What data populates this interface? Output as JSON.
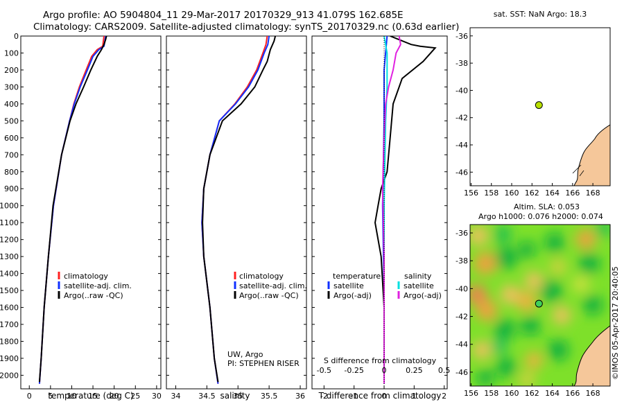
{
  "header": {
    "line1": "Argo profile: AO 5904804_11 29-Mar-2017 20170329_913 41.079S 162.685E",
    "line2": "Climatology: CARS2009. Satellite-adjusted climatology: synTS_20170329.nc (0.63d earlier)"
  },
  "colors": {
    "climatology": "#ff2020",
    "satellite": "#1030ff",
    "argo": "#000000",
    "sal_satellite": "#00e0e0",
    "sal_argo": "#e020e0",
    "marker": "#b8e000",
    "land": "#f5c79a"
  },
  "chart_data": [
    {
      "type": "line",
      "panel": "temperature",
      "xlabel": "temperature (deg C)",
      "xlim": [
        -2,
        31
      ],
      "ylim": [
        0,
        2080
      ],
      "y_inverted": true,
      "xticks": [
        0,
        5,
        10,
        15,
        20,
        25,
        30
      ],
      "yticks": [
        0,
        100,
        200,
        300,
        400,
        500,
        600,
        700,
        800,
        900,
        1000,
        1100,
        1200,
        1300,
        1400,
        1500,
        1600,
        1700,
        1800,
        1900,
        2000
      ],
      "legend": [
        "climatology",
        "satellite-adj. clim.",
        "Argo(..raw -QC)"
      ],
      "series": [
        {
          "name": "climatology",
          "x": [
            17.6,
            17.3,
            16.0,
            14.7,
            13.4,
            11.8,
            10.5,
            9.5,
            7.6,
            5.7,
            4.5,
            3.5,
            2.8,
            2.4
          ],
          "y": [
            0,
            60,
            80,
            120,
            200,
            300,
            400,
            500,
            700,
            1000,
            1300,
            1600,
            1900,
            2050
          ]
        },
        {
          "name": "satellite-adj. clim.",
          "x": [
            18.0,
            17.6,
            16.4,
            15.0,
            13.7,
            12.0,
            10.6,
            9.5,
            7.6,
            5.7,
            4.5,
            3.5,
            2.8,
            2.4
          ],
          "y": [
            0,
            60,
            80,
            120,
            200,
            300,
            400,
            500,
            700,
            1000,
            1300,
            1600,
            1900,
            2050
          ]
        },
        {
          "name": "Argo(..raw -QC)",
          "x": [
            18.2,
            18.0,
            17.6,
            17.0,
            16.0,
            14.5,
            12.8,
            11.0,
            9.6,
            7.6,
            5.6,
            4.5,
            3.5,
            2.8,
            2.4
          ],
          "y": [
            0,
            20,
            50,
            80,
            120,
            200,
            300,
            400,
            500,
            700,
            1000,
            1300,
            1600,
            1900,
            2040
          ]
        }
      ]
    },
    {
      "type": "line",
      "panel": "salinity",
      "xlabel": "salinity",
      "xlim": [
        33.85,
        36.1
      ],
      "ylim": [
        0,
        2080
      ],
      "y_inverted": true,
      "xticks": [
        34,
        34.5,
        35,
        35.5,
        36
      ],
      "legend": [
        "climatology",
        "satellite-adj. clim.",
        "Argo(..raw -QC)"
      ],
      "annotation": [
        "UW, Argo",
        "PI: STEPHEN RISER"
      ],
      "series": [
        {
          "name": "climatology",
          "x": [
            35.47,
            35.45,
            35.4,
            35.3,
            35.15,
            34.95,
            34.7,
            34.55,
            34.45,
            34.42,
            34.45,
            34.55,
            34.62,
            34.68
          ],
          "y": [
            0,
            50,
            100,
            200,
            300,
            400,
            500,
            700,
            900,
            1100,
            1300,
            1600,
            1900,
            2050
          ]
        },
        {
          "name": "satellite-adj. clim.",
          "x": [
            35.5,
            35.48,
            35.42,
            35.32,
            35.17,
            34.96,
            34.7,
            34.55,
            34.45,
            34.42,
            34.45,
            34.55,
            34.62,
            34.68
          ],
          "y": [
            0,
            50,
            100,
            200,
            300,
            400,
            500,
            700,
            900,
            1100,
            1300,
            1600,
            1900,
            2050
          ]
        },
        {
          "name": "Argo(..raw -QC)",
          "x": [
            35.6,
            35.58,
            35.52,
            35.47,
            35.4,
            35.27,
            35.05,
            34.75,
            34.55,
            34.45,
            34.43,
            34.45,
            34.55,
            34.62,
            34.68
          ],
          "y": [
            0,
            30,
            80,
            150,
            200,
            300,
            400,
            500,
            700,
            900,
            1100,
            1300,
            1600,
            1900,
            2040
          ]
        }
      ]
    },
    {
      "type": "line",
      "panel": "difference",
      "xlabel": "T difference from climatology",
      "xlabel_top": "S difference from climatology",
      "xlim": [
        -2.4,
        2.1
      ],
      "ylim": [
        0,
        2080
      ],
      "y_inverted": true,
      "xticks": [
        -2,
        -1,
        0,
        1,
        2
      ],
      "xticks_S": [
        "-0.5",
        "-0.25",
        "0",
        "0.25",
        "0.5"
      ],
      "legend_temperature_title": "temperature",
      "legend_salinity_title": "salinity",
      "legend": [
        "satellite",
        "Argo(-adj)",
        "satellite",
        "Argo(-adj)"
      ],
      "series": [
        {
          "name": "satellite",
          "x": [
            0.1,
            0.0,
            0.0,
            -0.05,
            0.0,
            0.0
          ],
          "y": [
            0,
            200,
            500,
            1000,
            1500,
            2050
          ]
        },
        {
          "name": "Argo(-adj)",
          "x": [
            0.2,
            0.9,
            1.2,
            1.7,
            1.3,
            0.6,
            0.5,
            0.3,
            0.2,
            0.1,
            -0.1,
            -0.2,
            -0.3,
            -0.1,
            0.0,
            0.0
          ],
          "y": [
            0,
            50,
            60,
            70,
            150,
            250,
            300,
            400,
            600,
            800,
            900,
            1000,
            1100,
            1300,
            1600,
            2050
          ]
        },
        {
          "name": "satellite",
          "x": [
            0.0,
            0.1,
            0.1,
            0.05,
            0.0,
            0.0,
            0.0
          ],
          "y": [
            0,
            100,
            300,
            500,
            1000,
            1500,
            2050
          ]
        },
        {
          "name": "Argo(-adj)",
          "x": [
            0.5,
            0.55,
            0.4,
            0.3,
            0.15,
            0.05,
            0.0,
            -0.05,
            0.0,
            0.0
          ],
          "y": [
            0,
            50,
            100,
            200,
            300,
            400,
            600,
            900,
            1300,
            2050
          ]
        }
      ]
    },
    {
      "type": "scatter",
      "panel": "sst-map",
      "title": "sat. SST: NaN Argo: 18.3",
      "xlim": [
        155.9,
        169.7
      ],
      "ylim": [
        -47,
        -35.4
      ],
      "xticks": [
        156,
        158,
        160,
        162,
        164,
        166,
        168
      ],
      "yticks": [
        -36,
        -38,
        -40,
        -42,
        -44,
        -46
      ],
      "points": [
        {
          "lon": 162.685,
          "lat": -41.079
        }
      ]
    },
    {
      "type": "heatmap",
      "panel": "sla-map",
      "title": "Altim. SLA: 0.053",
      "subtitle": "Argo h1000: 0.076 h2000: 0.074",
      "xlim": [
        155.9,
        169.7
      ],
      "ylim": [
        -47,
        -35.4
      ],
      "xticks": [
        156,
        158,
        160,
        162,
        164,
        166,
        168
      ],
      "yticks": [
        -36,
        -38,
        -40,
        -42,
        -44,
        -46
      ],
      "points": [
        {
          "lon": 162.685,
          "lat": -41.079
        }
      ]
    }
  ],
  "credit": "©IMOS 05-Apr-2017 20:40:05"
}
